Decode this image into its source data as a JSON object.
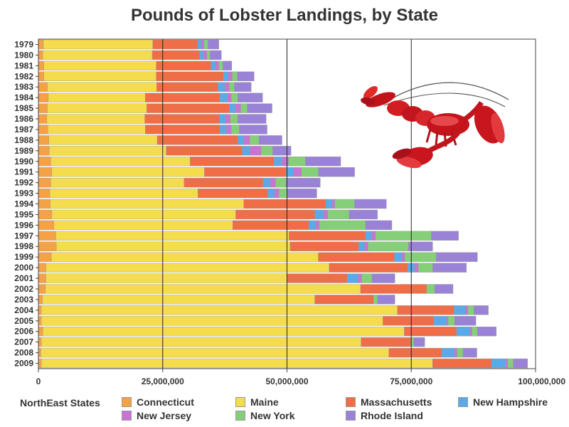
{
  "chart_data": {
    "type": "bar",
    "orientation": "horizontal",
    "stacked": true,
    "title": "Pounds of Lobster Landings, by State",
    "legend_title": "NorthEast States",
    "categories": [
      "1979",
      "1980",
      "1981",
      "1982",
      "1983",
      "1984",
      "1985",
      "1986",
      "1987",
      "1988",
      "1989",
      "1990",
      "1991",
      "1992",
      "1993",
      "1994",
      "1995",
      "1996",
      "1997",
      "1998",
      "1999",
      "2000",
      "2001",
      "2002",
      "2003",
      "2004",
      "2005",
      "2006",
      "2007",
      "2008",
      "2009"
    ],
    "series": [
      {
        "name": "Connecticut",
        "color": "#f5a145",
        "values": [
          1000000,
          900000,
          1100000,
          1100000,
          1800000,
          2000000,
          1800000,
          1700000,
          1900000,
          2100000,
          2200000,
          2500000,
          2700000,
          2500000,
          2300000,
          2400000,
          2700000,
          3100000,
          3500000,
          3600000,
          2600000,
          1500000,
          1500000,
          1400000,
          800000,
          600000,
          600000,
          900000,
          600000,
          500000,
          600000
        ]
      },
      {
        "name": "Maine",
        "color": "#f5dc4c",
        "values": [
          22000000,
          22000000,
          22600000,
          22600000,
          22000000,
          19500000,
          20000000,
          19700000,
          19600000,
          21800000,
          23500000,
          28000000,
          30700000,
          26800000,
          29800000,
          38900000,
          37000000,
          36000000,
          46900000,
          47000000,
          53700000,
          57000000,
          48600000,
          63400000,
          54800000,
          71600000,
          68700000,
          72700000,
          64300000,
          70000000,
          78700000
        ]
      },
      {
        "name": "Massachusetts",
        "color": "#ef6d47",
        "values": [
          9000000,
          9500000,
          11000000,
          13500000,
          12300000,
          15000000,
          16600000,
          15000000,
          15000000,
          16200000,
          15300000,
          16900000,
          16400000,
          15900000,
          14000000,
          16500000,
          15900000,
          15300000,
          15400000,
          13800000,
          15300000,
          15800000,
          12000000,
          13300000,
          11800000,
          11400000,
          10200000,
          10500000,
          10000000,
          10600000,
          11800000
        ]
      },
      {
        "name": "New Hampshire",
        "color": "#5ba9e8",
        "values": [
          700000,
          800000,
          900000,
          1000000,
          1400000,
          1500000,
          1200000,
          1200000,
          1300000,
          1200000,
          1500000,
          1600000,
          1600000,
          1400000,
          1400000,
          1300000,
          1800000,
          1400000,
          1300000,
          1200000,
          1500000,
          1400000,
          2200000,
          0,
          0,
          2300000,
          2600000,
          2700000,
          0,
          2600000,
          2900000
        ]
      },
      {
        "name": "New Jersey",
        "color": "#c973d2",
        "values": [
          600000,
          700000,
          700000,
          800000,
          900000,
          800000,
          1100000,
          1000000,
          1000000,
          1200000,
          2300000,
          1300000,
          1500000,
          1100000,
          900000,
          500000,
          800000,
          700000,
          700000,
          700000,
          600000,
          700000,
          700000,
          0,
          0,
          500000,
          300000,
          400000,
          0,
          500000,
          400000
        ]
      },
      {
        "name": "New York",
        "color": "#85cf79",
        "values": [
          800000,
          600000,
          800000,
          1000000,
          1000000,
          1300000,
          1300000,
          1500000,
          1600000,
          1900000,
          2300000,
          3400000,
          3400000,
          2100000,
          1600000,
          4000000,
          4300000,
          9300000,
          11200000,
          8100000,
          6300000,
          2900000,
          2100000,
          1600000,
          800000,
          1200000,
          1300000,
          1100000,
          600000,
          1200000,
          1100000
        ]
      },
      {
        "name": "Rhode Island",
        "color": "#9a82d6",
        "values": [
          2200000,
          2300000,
          1800000,
          3400000,
          3400000,
          5000000,
          5000000,
          5700000,
          5600000,
          4600000,
          3700000,
          7100000,
          7300000,
          6900000,
          6000000,
          6400000,
          5700000,
          5300000,
          5500000,
          4900000,
          8300000,
          6800000,
          4600000,
          3700000,
          3500000,
          2900000,
          4300000,
          3800000,
          2200000,
          2800000,
          2900000
        ]
      }
    ],
    "xlim": [
      0,
      100000000
    ],
    "xticks": [
      "0",
      "25,000,000",
      "50,000,000",
      "75,000,000",
      "100,000,000"
    ],
    "grid": "vertical reference lines at 25,000,000 / 50,000,000 / 75,000,000",
    "legend_position": "bottom",
    "decoration": "red-lobster-illustration"
  }
}
